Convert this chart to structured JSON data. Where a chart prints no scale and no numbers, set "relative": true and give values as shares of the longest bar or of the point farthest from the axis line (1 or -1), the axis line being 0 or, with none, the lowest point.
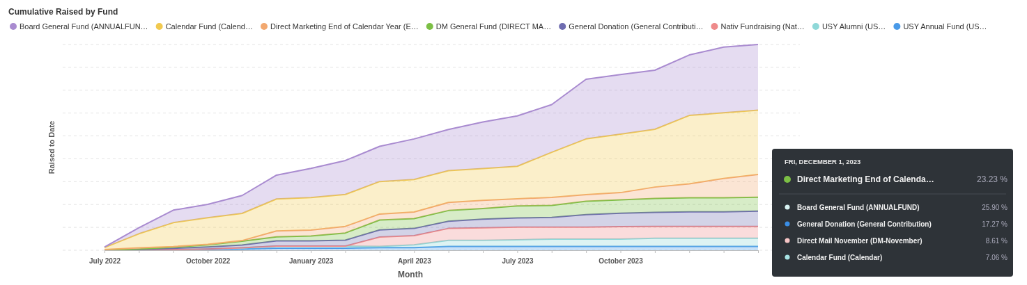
{
  "chart_data": {
    "type": "area",
    "stacked": true,
    "relative": true,
    "title": "Cumulative Raised by Fund",
    "xlabel": "Month",
    "ylabel": "Raised to Date",
    "legend": "top",
    "grid": "y",
    "categories": [
      "July 2022",
      null,
      null,
      "October 2022",
      null,
      null,
      "January 2023",
      null,
      null,
      "April 2023",
      null,
      null,
      "July 2023",
      null,
      null,
      "October 2023",
      null,
      null,
      null,
      null
    ],
    "series": [
      {
        "name": "USY Annual Fund (US…",
        "color": "#4a9ae8",
        "values": [
          0,
          0,
          0.003,
          0.003,
          0.006,
          0.01,
          0.01,
          0.01,
          0.013,
          0.013,
          0.019,
          0.019,
          0.019,
          0.019,
          0.019,
          0.019,
          0.019,
          0.019,
          0.019,
          0.019
        ]
      },
      {
        "name": "USY Alumni (US…",
        "color": "#8fd8d8",
        "values": [
          0,
          0,
          0,
          0.003,
          0.006,
          0.01,
          0.01,
          0.01,
          0.006,
          0.013,
          0.029,
          0.029,
          0.032,
          0.035,
          0.035,
          0.035,
          0.039,
          0.039,
          0.039,
          0.039
        ]
      },
      {
        "name": "Nativ Fundraising (Nat…",
        "color": "#ee8a8a",
        "values": [
          0,
          0,
          0,
          0,
          0,
          0,
          0,
          0,
          0.045,
          0.045,
          0.058,
          0.061,
          0.061,
          0.058,
          0.058,
          0.061,
          0.058,
          0.058,
          0.058,
          0.058
        ]
      },
      {
        "name": "General Donation (General Contributi…",
        "color": "#6e6cb0",
        "values": [
          0,
          0.003,
          0.006,
          0.01,
          0.013,
          0.026,
          0.026,
          0.029,
          0.035,
          0.035,
          0.035,
          0.042,
          0.045,
          0.048,
          0.061,
          0.065,
          0.068,
          0.071,
          0.071,
          0.074
        ]
      },
      {
        "name": "DM General Fund (DIRECT MA…",
        "color": "#7cbf45",
        "values": [
          0,
          0.003,
          0.006,
          0.01,
          0.019,
          0.019,
          0.023,
          0.035,
          0.048,
          0.048,
          0.052,
          0.052,
          0.058,
          0.058,
          0.065,
          0.065,
          0.068,
          0.068,
          0.068,
          0.068
        ]
      },
      {
        "name": "Direct Marketing End of Calendar Year (E…",
        "color": "#f2a86f",
        "values": [
          0.003,
          0.006,
          0.003,
          0.003,
          0.003,
          0.029,
          0.029,
          0.032,
          0.029,
          0.032,
          0.039,
          0.039,
          0.035,
          0.039,
          0.032,
          0.035,
          0.055,
          0.068,
          0.094,
          0.11
        ]
      },
      {
        "name": "Calendar Fund (Calend…",
        "color": "#f1c94f",
        "values": [
          0.01,
          0.068,
          0.116,
          0.129,
          0.132,
          0.155,
          0.158,
          0.155,
          0.158,
          0.158,
          0.155,
          0.155,
          0.158,
          0.219,
          0.271,
          0.284,
          0.281,
          0.332,
          0.319,
          0.313
        ]
      },
      {
        "name": "Board General Fund (ANNUALFUN…",
        "color": "#a98bd0",
        "values": [
          0.003,
          0.029,
          0.061,
          0.065,
          0.087,
          0.116,
          0.142,
          0.165,
          0.171,
          0.197,
          0.2,
          0.226,
          0.245,
          0.232,
          0.29,
          0.29,
          0.287,
          0.294,
          0.319,
          0.319
        ]
      }
    ],
    "annotations": [
      "FRI, DECEMBER 1, 2023",
      "Direct Marketing End of Calenda…",
      "23.23 %",
      "Board General Fund (ANNUALFUND)",
      "25.90 %",
      "General Donation (General Contribution)",
      "17.27 %",
      "Direct Mail November (DM-November)",
      "8.61 %",
      "Calendar Fund (Calendar)",
      "7.06 %"
    ]
  }
}
